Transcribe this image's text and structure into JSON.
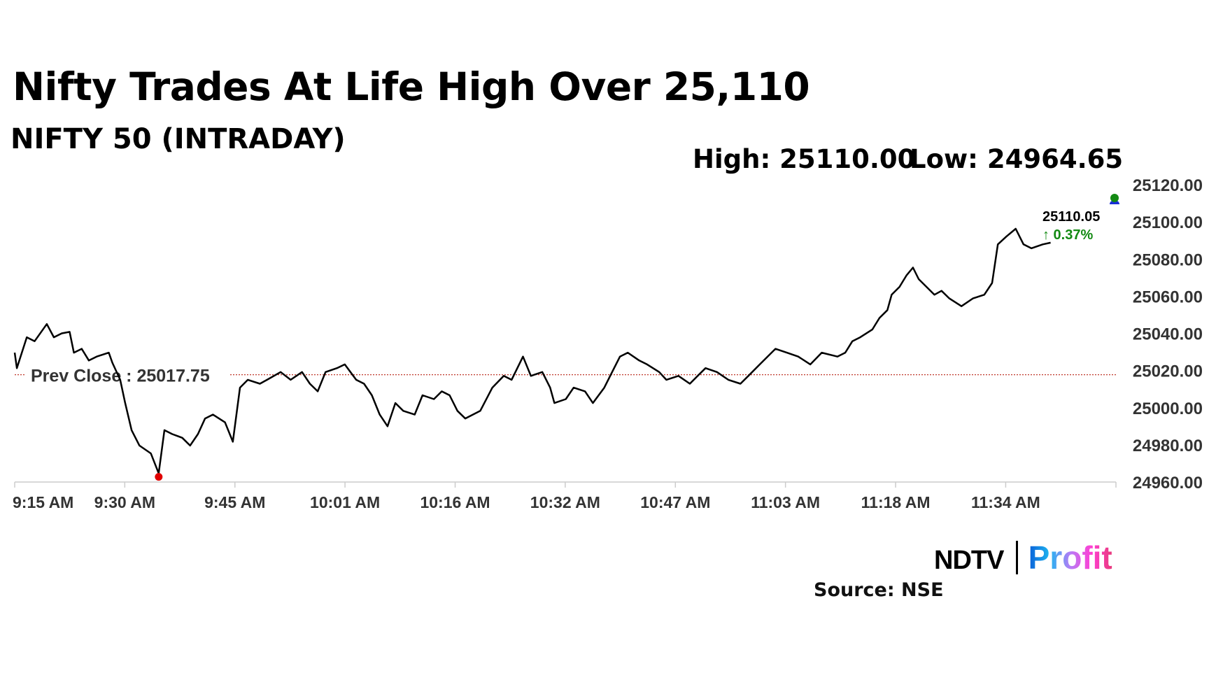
{
  "title": "Nifty Trades At Life High Over 25,110",
  "subtitle": "NIFTY 50 (INTRADAY)",
  "high_label": "High: 25110.00",
  "low_label": "Low: 24964.65",
  "last_price": "25110.05",
  "change": "↑ 0.37%",
  "source": "Source: NSE",
  "logo": {
    "left": "NDTV",
    "right": "Profit"
  },
  "colors": {
    "line": "#000000",
    "prev_close": "#c0392b",
    "up": "#138a13",
    "low_marker": "#e00000"
  },
  "chart_data": {
    "type": "line",
    "title": "NIFTY 50 (INTRADAY)",
    "xlabel": "",
    "ylabel": "",
    "x_unit": "minutes after 9:15 AM",
    "x_ticks": [
      0,
      15.44,
      30.89,
      46.33,
      61.78,
      77.22,
      92.67,
      108.11,
      123.56,
      139
    ],
    "x_tick_labels": [
      "9:15 AM",
      "9:30 AM",
      "9:45 AM",
      "10:01 AM",
      "10:16 AM",
      "10:32 AM",
      "10:47 AM",
      "11:03 AM",
      "11:18 AM",
      "11:34 AM"
    ],
    "xlim": [
      0,
      154
    ],
    "ylim": [
      24960,
      25120
    ],
    "y_ticks": [
      24960,
      24980,
      25000,
      25020,
      25040,
      25060,
      25080,
      25100,
      25120
    ],
    "y_tick_labels": [
      "24960.00",
      "24980.00",
      "25000.00",
      "25020.00",
      "25040.00",
      "25060.00",
      "25080.00",
      "25100.00",
      "25120.00"
    ],
    "prev_close": 25017.75,
    "prev_close_label": "Prev Close : 25017.75",
    "low_point": [
      20.2,
      24964.65
    ],
    "x": [
      0,
      0.3,
      1.7,
      2.8,
      4.5,
      5.5,
      6.6,
      7.7,
      8.3,
      9.4,
      10.4,
      11.5,
      13.2,
      13.7,
      14.8,
      15.5,
      16.4,
      17.5,
      19.1,
      20.2,
      21.0,
      22.1,
      23.5,
      24.6,
      25.7,
      26.7,
      27.8,
      29.5,
      30.6,
      31.6,
      32.7,
      34.4,
      35.4,
      37.3,
      38.7,
      40.3,
      41.4,
      42.5,
      43.6,
      45.2,
      46.3,
      47.9,
      49.0,
      50.1,
      51.2,
      52.3,
      53.4,
      54.5,
      56.1,
      57.2,
      58.8,
      59.9,
      61.0,
      62.1,
      63.2,
      65.3,
      67.0,
      68.6,
      69.7,
      71.3,
      72.4,
      74.0,
      75.1,
      75.7,
      77.3,
      78.4,
      80.0,
      81.1,
      82.7,
      83.8,
      84.9,
      86.0,
      87.6,
      88.7,
      90.4,
      91.4,
      93.1,
      94.7,
      95.8,
      96.9,
      98.5,
      100.1,
      101.8,
      102.9,
      104.5,
      105.6,
      106.7,
      108.3,
      109.9,
      111.6,
      113.2,
      115.4,
      116.5,
      117.5,
      118.6,
      120.3,
      121.3,
      122.4,
      123.0,
      124.1,
      125.1,
      126.0,
      126.8,
      127.9,
      129.0,
      130.0,
      131.1,
      132.8,
      134.4,
      136.0,
      137.1,
      137.9,
      139.1,
      140.4,
      141.5,
      142.6,
      144.2,
      145.3
    ],
    "y": [
      25029.6,
      25021.3,
      25037.9,
      25035.8,
      25045.0,
      25037.9,
      25040.0,
      25040.8,
      25029.6,
      25031.7,
      25025.4,
      25027.5,
      25029.6,
      25024.2,
      25015.0,
      25002.5,
      24987.9,
      24979.6,
      24975.4,
      24964.65,
      24987.9,
      24985.8,
      24983.8,
      24979.6,
      24985.8,
      24994.2,
      24996.3,
      24992.1,
      24981.7,
      25010.8,
      25015.0,
      25012.9,
      25015.0,
      25019.2,
      25015.0,
      25019.2,
      25012.9,
      25008.8,
      25019.2,
      25021.3,
      25023.3,
      25015.0,
      25012.9,
      25006.7,
      24996.3,
      24990.0,
      25002.5,
      24998.3,
      24996.3,
      25006.7,
      25004.6,
      25008.8,
      25006.7,
      24998.3,
      24994.2,
      24998.3,
      25010.8,
      25017.1,
      25015.0,
      25027.5,
      25017.1,
      25019.2,
      25010.8,
      25002.5,
      25004.6,
      25010.8,
      25008.8,
      25002.5,
      25010.8,
      25019.2,
      25027.5,
      25029.6,
      25025.4,
      25023.3,
      25019.2,
      25015.0,
      25017.1,
      25012.9,
      25017.1,
      25021.3,
      25019.2,
      25015.0,
      25012.9,
      25017.1,
      25023.3,
      25027.5,
      25031.7,
      25029.6,
      25027.5,
      25023.3,
      25029.6,
      25027.5,
      25029.6,
      25035.8,
      25037.9,
      25042.1,
      25048.3,
      25052.5,
      25060.8,
      25065.0,
      25071.3,
      25075.4,
      25069.2,
      25065.0,
      25060.8,
      25062.9,
      25058.8,
      25054.6,
      25058.8,
      25060.8,
      25067.1,
      25087.9,
      25092.1,
      25096.3,
      25087.9,
      25085.8,
      25087.9,
      25088.8
    ]
  }
}
